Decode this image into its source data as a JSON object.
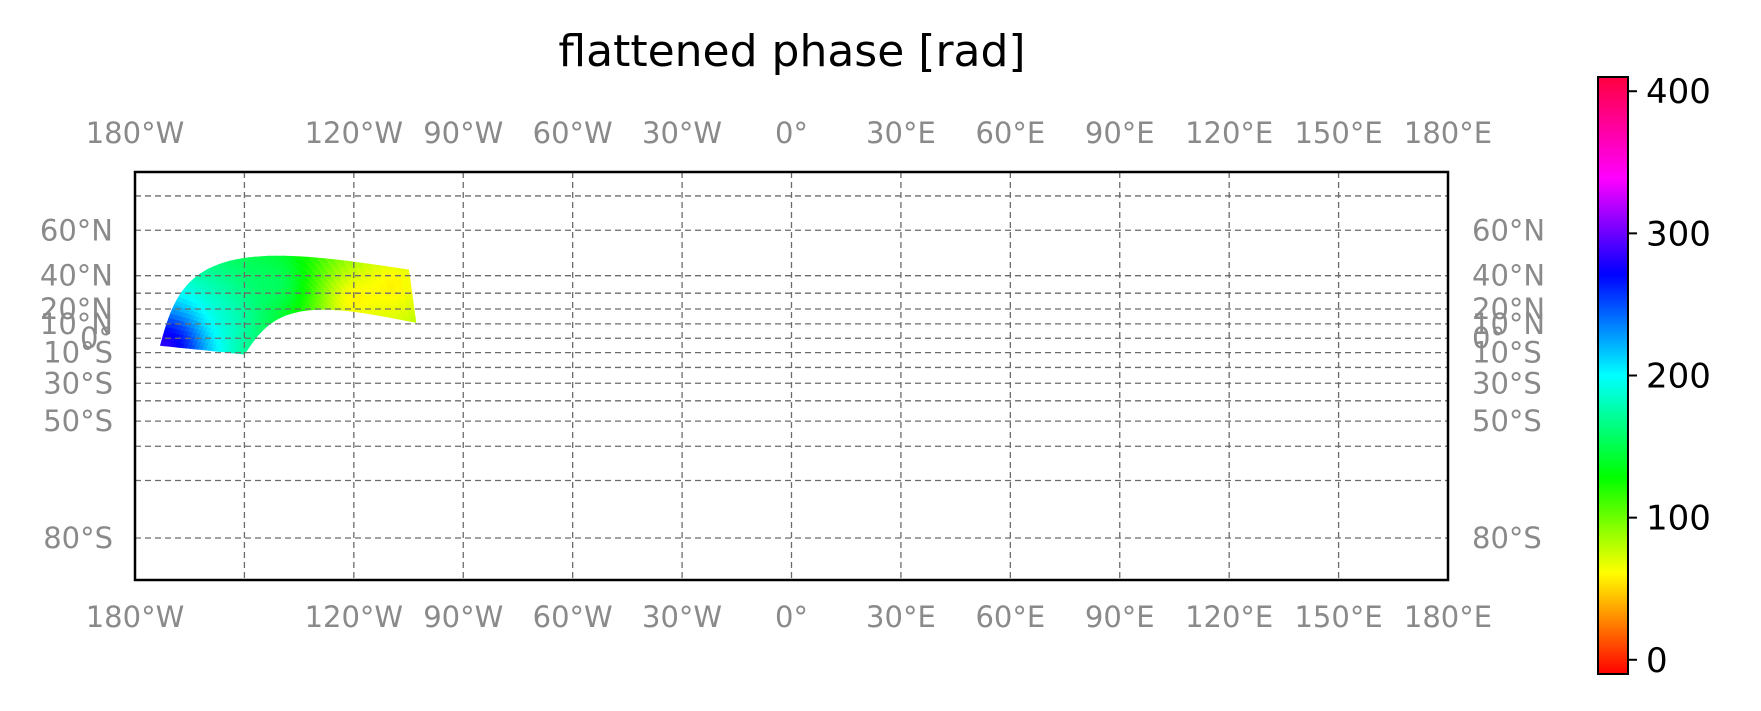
{
  "chart_data": {
    "type": "heatmap",
    "title": "flattened phase [rad]",
    "projection": "Mercator",
    "grid": true,
    "longitude_ticks": [
      {
        "value": -180,
        "label": "180°W"
      },
      {
        "value": -120,
        "label": "120°W"
      },
      {
        "value": -90,
        "label": "90°W"
      },
      {
        "value": -60,
        "label": "60°W"
      },
      {
        "value": -30,
        "label": "30°W"
      },
      {
        "value": 0,
        "label": "0°"
      },
      {
        "value": 30,
        "label": "30°E"
      },
      {
        "value": 60,
        "label": "60°E"
      },
      {
        "value": 90,
        "label": "90°E"
      },
      {
        "value": 120,
        "label": "120°E"
      },
      {
        "value": 150,
        "label": "150°E"
      },
      {
        "value": 180,
        "label": "180°E"
      }
    ],
    "extra_meridians": [
      -150
    ],
    "latitude_ticks": [
      {
        "value": 60,
        "label": "60°N"
      },
      {
        "value": 40,
        "label": "40°N"
      },
      {
        "value": 20,
        "label": "20°N"
      },
      {
        "value": 10,
        "label": "10°N"
      },
      {
        "value": 0,
        "label": "0°"
      },
      {
        "value": -10,
        "label": "10°S"
      },
      {
        "value": -30,
        "label": "30°S"
      },
      {
        "value": -50,
        "label": "50°S"
      },
      {
        "value": -80,
        "label": "80°S"
      }
    ],
    "extra_parallels": [
      70,
      30,
      -20,
      -40,
      -60,
      -70
    ],
    "lat_range": [
      -84,
      75
    ],
    "lon_range": [
      -180,
      180
    ],
    "colorbar": {
      "colormap": "hsv",
      "range": [
        -10,
        410
      ],
      "ticks": [
        {
          "value": 0,
          "label": "0"
        },
        {
          "value": 100,
          "label": "100"
        },
        {
          "value": 200,
          "label": "200"
        },
        {
          "value": 300,
          "label": "300"
        },
        {
          "value": 400,
          "label": "400"
        }
      ]
    },
    "data_region": {
      "corners": [
        {
          "lon": -173,
          "lat": -5
        },
        {
          "lon": -150,
          "lat": -11
        },
        {
          "lon": -103,
          "lat": 11
        },
        {
          "lon": -105,
          "lat": 43
        }
      ],
      "hotspots": [
        {
          "lon": -120,
          "lat": 24,
          "value": 5
        },
        {
          "lon": -109,
          "lat": 34,
          "value": 25
        },
        {
          "lon": -140,
          "lat": 35,
          "value": 175
        },
        {
          "lon": -155,
          "lat": 15,
          "value": 190
        },
        {
          "lon": -172,
          "lat": -4,
          "value": 350
        },
        {
          "lon": -168,
          "lat": -6,
          "value": 290
        },
        {
          "lon": -120,
          "lat": 10,
          "value": 85
        },
        {
          "lon": -110,
          "lat": 20,
          "value": 60
        }
      ],
      "base_value": 130
    }
  }
}
